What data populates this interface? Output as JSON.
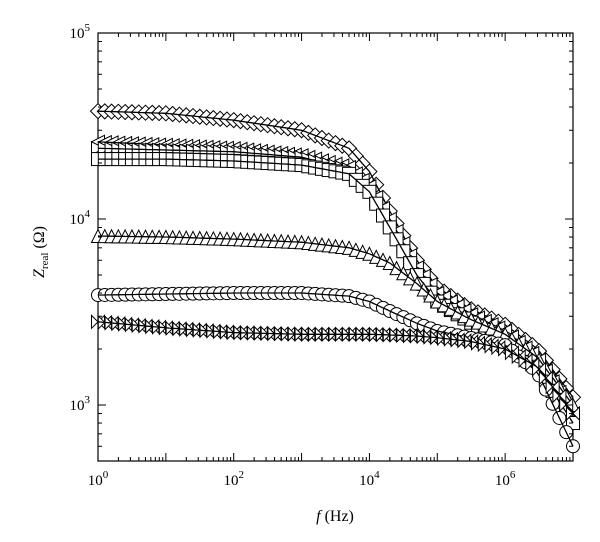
{
  "chart_data": {
    "type": "scatter",
    "title": "",
    "xlabel": {
      "var": "f",
      "unit": "(Hz)"
    },
    "ylabel": {
      "var": "Z",
      "sub": "real",
      "unit": "(Ω)"
    },
    "x_scale": "log",
    "y_scale": "log",
    "xlim": [
      1,
      10000000
    ],
    "ylim": [
      500,
      100000
    ],
    "x_ticks": [
      {
        "value": 1,
        "base": "10",
        "exp": "0"
      },
      {
        "value": 100,
        "base": "10",
        "exp": "2"
      },
      {
        "value": 10000,
        "base": "10",
        "exp": "4"
      },
      {
        "value": 1000000,
        "base": "10",
        "exp": "6"
      }
    ],
    "y_ticks": [
      {
        "value": 1000,
        "base": "10",
        "exp": "3"
      },
      {
        "value": 10000,
        "base": "10",
        "exp": "4"
      },
      {
        "value": 100000,
        "base": "10",
        "exp": "5"
      }
    ],
    "grid": false,
    "legend": "none",
    "series": [
      {
        "marker": "diamond",
        "x": [
          1,
          10,
          100,
          1000,
          5000,
          10000,
          20000,
          50000,
          100000,
          300000,
          1000000,
          3000000,
          10000000
        ],
        "y": [
          38000,
          37000,
          34000,
          30000,
          24000,
          18000,
          11000,
          6000,
          4300,
          3300,
          2700,
          2000,
          1100
        ]
      },
      {
        "marker": "triangle-left",
        "x": [
          1,
          10,
          100,
          1000,
          5000,
          10000,
          20000,
          50000,
          100000,
          300000,
          1000000,
          3000000,
          10000000
        ],
        "y": [
          26000,
          25000,
          24000,
          22000,
          19000,
          15000,
          10000,
          5500,
          4000,
          3100,
          2500,
          1800,
          900
        ]
      },
      {
        "marker": "triangle-right",
        "x": [
          1,
          10,
          100,
          1000,
          5000,
          10000,
          20000,
          50000,
          100000,
          300000,
          1000000,
          3000000,
          10000000
        ],
        "y": [
          24000,
          23500,
          23000,
          21500,
          18500,
          14500,
          9500,
          5300,
          3800,
          3000,
          2400,
          1700,
          850
        ]
      },
      {
        "marker": "square",
        "x": [
          1,
          10,
          100,
          1000,
          5000,
          10000,
          20000,
          50000,
          100000,
          300000,
          1000000,
          3000000,
          10000000
        ],
        "y": [
          21000,
          21000,
          20500,
          19500,
          17500,
          14000,
          9000,
          5000,
          3600,
          2800,
          2200,
          1600,
          800
        ]
      },
      {
        "marker": "triangle-up",
        "x": [
          1,
          10,
          100,
          1000,
          5000,
          10000,
          20000,
          50000,
          100000,
          300000,
          1000000,
          3000000,
          10000000
        ],
        "y": [
          8100,
          8000,
          7800,
          7500,
          7000,
          6500,
          5800,
          4500,
          3600,
          2900,
          2400,
          1800,
          1000
        ]
      },
      {
        "marker": "circle",
        "x": [
          1,
          10,
          100,
          1000,
          5000,
          10000,
          20000,
          50000,
          100000,
          300000,
          1000000,
          3000000,
          10000000
        ],
        "y": [
          3900,
          3950,
          4000,
          4000,
          3850,
          3600,
          3200,
          2750,
          2500,
          2300,
          2100,
          1500,
          600
        ]
      },
      {
        "marker": "x-triangle",
        "x": [
          1,
          10,
          100,
          1000,
          5000,
          10000,
          20000,
          50000,
          100000,
          300000,
          1000000,
          3000000,
          10000000
        ],
        "y": [
          2800,
          2600,
          2450,
          2400,
          2400,
          2400,
          2380,
          2350,
          2300,
          2200,
          2000,
          1600,
          900
        ]
      }
    ]
  }
}
